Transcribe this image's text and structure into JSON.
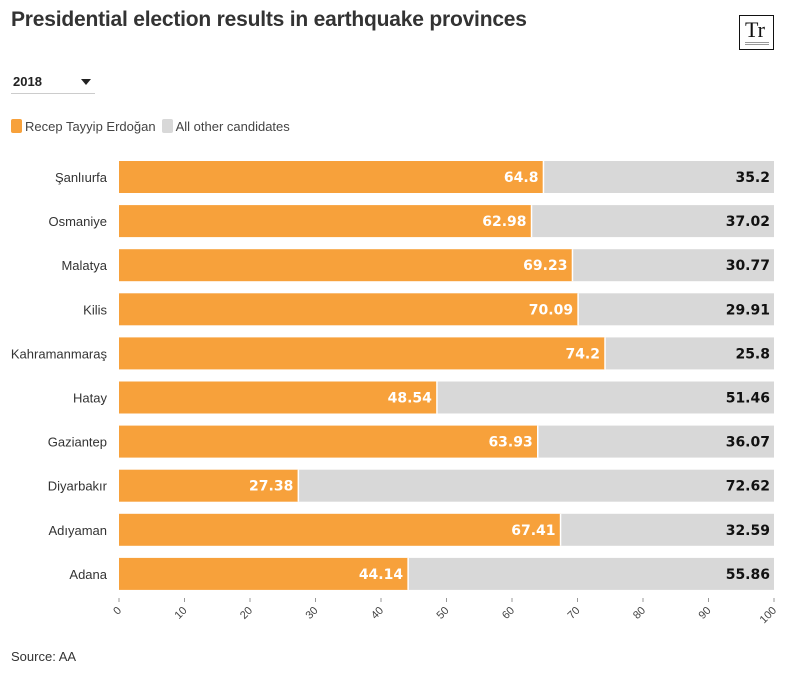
{
  "title": "Presidential election results in earthquake provinces",
  "logo_text": "Tr",
  "year_select": {
    "selected": "2018"
  },
  "source": "Source: AA",
  "colors": {
    "primary": "#f7a13b",
    "secondary": "#d8d8d8"
  },
  "chart_data": {
    "type": "bar",
    "orientation": "horizontal",
    "stacked": true,
    "categories": [
      "Şanlıurfa",
      "Osmaniye",
      "Malatya",
      "Kilis",
      "Kahramanmaraş",
      "Hatay",
      "Gaziantep",
      "Diyarbakır",
      "Adıyaman",
      "Adana"
    ],
    "series": [
      {
        "name": "Recep Tayyip Erdoğan",
        "color": "#f7a13b",
        "values": [
          64.8,
          62.98,
          69.23,
          70.09,
          74.2,
          48.54,
          63.93,
          27.38,
          67.41,
          44.14
        ]
      },
      {
        "name": "All other candidates",
        "color": "#d8d8d8",
        "values": [
          35.2,
          37.02,
          30.77,
          29.91,
          25.8,
          51.46,
          36.07,
          72.62,
          32.59,
          55.86
        ]
      }
    ],
    "xlim": [
      0,
      100
    ],
    "xticks": [
      0,
      10,
      20,
      30,
      40,
      50,
      60,
      70,
      80,
      90,
      100
    ],
    "legend_position": "top-left",
    "grid": false
  }
}
